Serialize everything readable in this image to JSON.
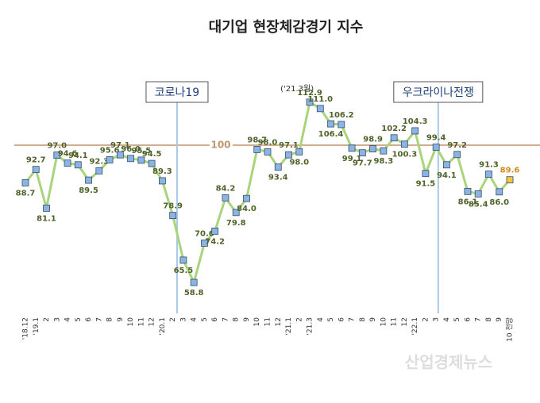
{
  "chart_data": {
    "type": "line",
    "title": "대기업 현장체감경기 지수",
    "categories": [
      "'18.12",
      "'19.1",
      "2",
      "3",
      "4",
      "5",
      "6",
      "7",
      "8",
      "9",
      "10",
      "11",
      "12",
      "'20.1",
      "2",
      "3",
      "4",
      "5",
      "6",
      "7",
      "8",
      "9",
      "10",
      "11",
      "12",
      "'21.1",
      "2",
      "'21.3",
      "4",
      "5",
      "6",
      "7",
      "8",
      "9",
      "10",
      "11",
      "12",
      "'22.1",
      "2",
      "3",
      "4",
      "5",
      "6",
      "7",
      "8",
      "9",
      "10 전망"
    ],
    "values": [
      88.7,
      92.7,
      81.1,
      97.0,
      94.6,
      94.1,
      89.5,
      92.3,
      95.6,
      97.1,
      96.0,
      95.5,
      94.5,
      89.3,
      78.9,
      65.5,
      58.8,
      70.6,
      74.2,
      84.2,
      79.8,
      84.0,
      98.7,
      98.0,
      93.4,
      97.1,
      98.0,
      112.9,
      111.0,
      106.4,
      106.2,
      99.1,
      97.7,
      98.9,
      98.3,
      102.2,
      100.3,
      104.3,
      91.5,
      99.4,
      94.1,
      97.2,
      86.1,
      85.4,
      91.3,
      86.0,
      89.6
    ],
    "value_labels": [
      "88.7",
      "92.7",
      "81.1",
      "97.0",
      "94.6",
      "94.1",
      "89.5",
      "92.3",
      "95.6",
      "97.1",
      "96.0",
      "95.5",
      "94.5",
      "89.3",
      "78.9",
      "65.5",
      "58.8",
      "70.6",
      "74.2",
      "84.2",
      "79.8",
      "84.0",
      "98.7",
      "98.0",
      "93.4",
      "97.1",
      "98.0",
      "112.9",
      "111.0",
      "106.4",
      "106.2",
      "99.1",
      "97.7",
      "98.9",
      "98.3",
      "102.2",
      "100.3",
      "104.3",
      "91.5",
      "99.4",
      "94.1",
      "97.2",
      "86.1",
      "85.4",
      "91.3",
      "86.0",
      "89.6"
    ],
    "ylim": [
      50,
      120
    ],
    "reference_line": {
      "value": 100,
      "color": "#c0946c"
    },
    "events": [
      {
        "label": "코로나19"
      },
      {
        "label": "우크라이나전쟁"
      }
    ],
    "peak_note": "('21.3월)",
    "color": "#a9d47c",
    "marker_color": "#8db3e2",
    "label_color": "#4f6228",
    "forecast_color": "#f5c342",
    "forecast_label_color": "#d08a1c",
    "watermark": "산업경제뉴스"
  }
}
